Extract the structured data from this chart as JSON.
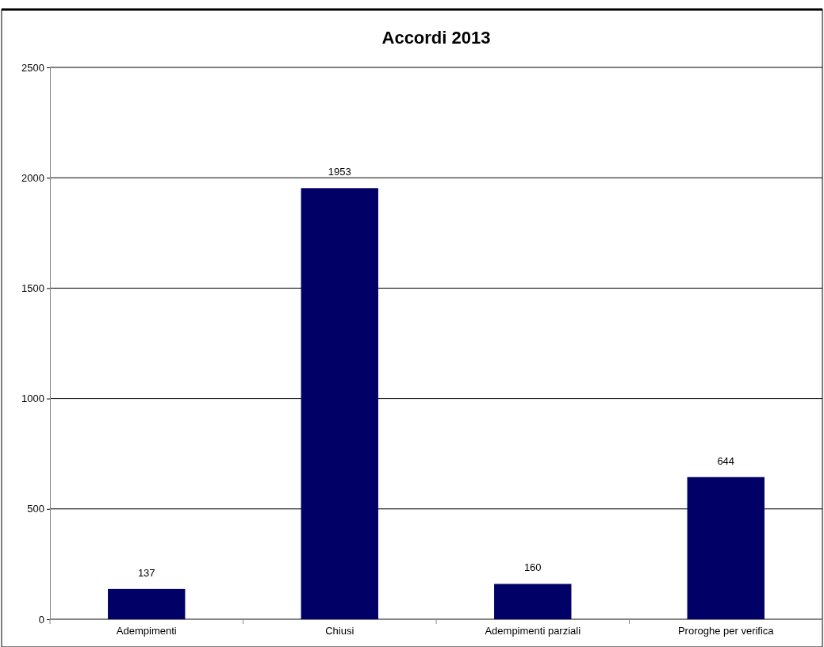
{
  "chart_data": {
    "type": "bar",
    "title": "Accordi 2013",
    "categories": [
      "Adempimenti",
      "Chiusi",
      "Adempimenti parziali",
      "Proroghe per verifica"
    ],
    "values": [
      137,
      1953,
      160,
      644
    ],
    "color": "#000066",
    "ylim": [
      0,
      2500
    ],
    "yticks": [
      0,
      500,
      1000,
      1500,
      2000,
      2500
    ],
    "grid": "y",
    "data_labels": true
  }
}
